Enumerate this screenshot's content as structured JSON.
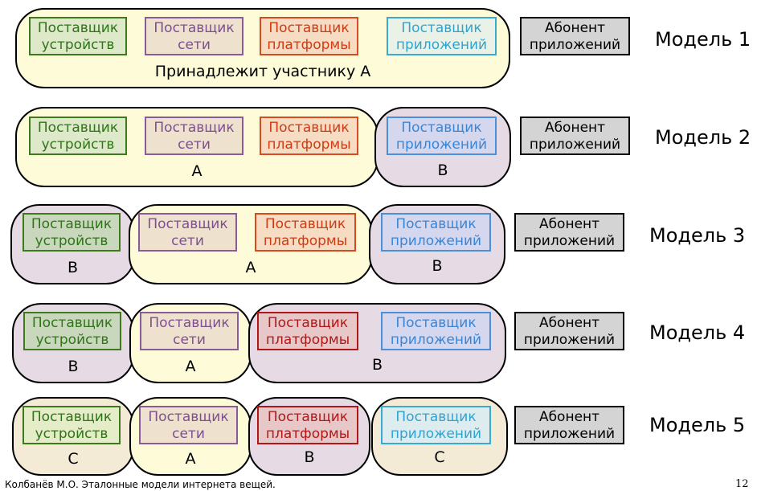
{
  "roles": {
    "device_provider": "Поставщик\nустройств",
    "network_provider": "Поставщик\nсети",
    "platform_provider": "Поставщик\nплатформы",
    "application_provider": "Поставщик\nприложений",
    "application_subscriber": "Абонент\nприложений"
  },
  "models": [
    {
      "title": "Модель 1",
      "groups": [
        {
          "label": "Принадлежит участнику A"
        }
      ]
    },
    {
      "title": "Модель 2",
      "groups": [
        {
          "label": "A"
        },
        {
          "label": "B"
        }
      ]
    },
    {
      "title": "Модель 3",
      "groups": [
        {
          "label": "B"
        },
        {
          "label": "A"
        },
        {
          "label": "B"
        }
      ]
    },
    {
      "title": "Модель 4",
      "groups": [
        {
          "label": "B"
        },
        {
          "label": "A"
        },
        {
          "label": "B"
        }
      ]
    },
    {
      "title": "Модель 5",
      "groups": [
        {
          "label": "C"
        },
        {
          "label": "A"
        },
        {
          "label": "B"
        },
        {
          "label": "C"
        }
      ]
    }
  ],
  "colors": {
    "device_provider": "#2f7418",
    "network_provider": "#7e4f8f",
    "platform_provider": "#d03a14",
    "platform_provider_alt": "#b21818",
    "application_provider": "#3a86d6",
    "participant_a_fill": "#fdfbd8",
    "participant_b_fill": "#e6dbe4",
    "participant_c_fill": "#f3ebd6",
    "subscriber_fill": "#d4d4d4"
  },
  "footer": {
    "citation": "Колбанёв М.О. Эталонные модели интернета вещей.",
    "page_number": "12"
  }
}
